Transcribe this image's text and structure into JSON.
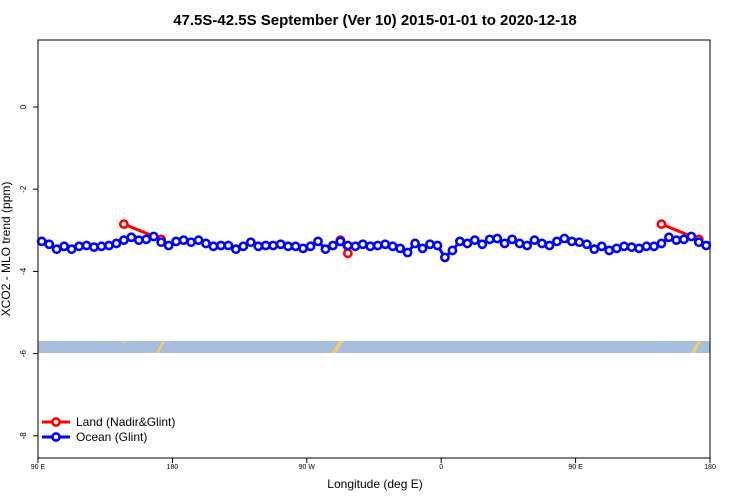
{
  "chart_data": {
    "type": "line",
    "title": "47.5S-42.5S September (Ver 10)   2015-01-01 to 2020-12-18",
    "x_label": "Longitude (deg E)",
    "y_label": "XCO2 - MLO trend (ppm)",
    "xlim": [
      90,
      540
    ],
    "ylim": [
      -8.54,
      1.63
    ],
    "xticks": [
      {
        "value": 90,
        "label": "90 E"
      },
      {
        "value": 180,
        "label": "180"
      },
      {
        "value": 270,
        "label": "90 W"
      },
      {
        "value": 360,
        "label": "0"
      },
      {
        "value": 450,
        "label": "90 E"
      },
      {
        "value": 540,
        "label": "180"
      }
    ],
    "yticks": [
      0,
      -2,
      -4,
      -6,
      -8
    ],
    "legend": "bottom-left",
    "series": [
      {
        "name": "Land (Nadir&Glint)",
        "color": "#ff0000",
        "x": [
          147.5,
          172.5,
          null,
          292.5,
          297.5,
          null,
          507.5,
          532.5
        ],
        "values": [
          -2.85,
          -3.22,
          null,
          -3.24,
          -3.56,
          null,
          -2.85,
          -3.22
        ]
      },
      {
        "name": "Ocean (Glint)",
        "color": "#0000ff",
        "x": [
          92.5,
          97.5,
          102.5,
          107.5,
          112.5,
          117.5,
          122.5,
          127.5,
          132.5,
          137.5,
          142.5,
          147.5,
          152.5,
          157.5,
          162.5,
          167.5,
          172.5,
          177.5,
          182.5,
          187.5,
          192.5,
          197.5,
          202.5,
          207.5,
          212.5,
          217.5,
          222.5,
          227.5,
          232.5,
          237.5,
          242.5,
          247.5,
          252.5,
          257.5,
          262.5,
          267.5,
          272.5,
          277.5,
          282.5,
          287.5,
          292.5,
          297.5,
          302.5,
          307.5,
          312.5,
          317.5,
          322.5,
          327.5,
          332.5,
          337.5,
          342.5,
          347.5,
          352.5,
          357.5,
          362.5,
          367.5,
          372.5,
          377.5,
          382.5,
          387.5,
          392.5,
          397.5,
          402.5,
          407.5,
          412.5,
          417.5,
          422.5,
          427.5,
          432.5,
          437.5,
          442.5,
          447.5,
          452.5,
          457.5,
          462.5,
          467.5,
          472.5,
          477.5,
          482.5,
          487.5,
          492.5,
          497.5,
          502.5,
          507.5,
          512.5,
          517.5,
          522.5,
          527.5,
          532.5,
          537.5
        ],
        "values": [
          -3.27,
          -3.34,
          -3.46,
          -3.39,
          -3.46,
          -3.39,
          -3.37,
          -3.41,
          -3.39,
          -3.37,
          -3.32,
          -3.24,
          -3.17,
          -3.24,
          -3.22,
          -3.15,
          -3.29,
          -3.37,
          -3.27,
          -3.24,
          -3.29,
          -3.24,
          -3.32,
          -3.39,
          -3.37,
          -3.37,
          -3.46,
          -3.39,
          -3.29,
          -3.39,
          -3.37,
          -3.37,
          -3.34,
          -3.39,
          -3.39,
          -3.44,
          -3.39,
          -3.27,
          -3.46,
          -3.37,
          -3.27,
          -3.37,
          -3.39,
          -3.34,
          -3.39,
          -3.37,
          -3.34,
          -3.39,
          -3.44,
          -3.54,
          -3.32,
          -3.44,
          -3.34,
          -3.37,
          -3.66,
          -3.49,
          -3.27,
          -3.32,
          -3.24,
          -3.34,
          -3.22,
          -3.2,
          -3.32,
          -3.22,
          -3.32,
          -3.37,
          -3.24,
          -3.32,
          -3.37,
          -3.27,
          -3.2,
          -3.27,
          -3.29,
          -3.34,
          -3.46,
          -3.39,
          -3.49,
          -3.44,
          -3.39,
          -3.41,
          -3.44,
          -3.39,
          -3.39,
          -3.32,
          -3.17,
          -3.24,
          -3.22,
          -3.15,
          -3.29,
          -3.37
        ]
      }
    ]
  }
}
